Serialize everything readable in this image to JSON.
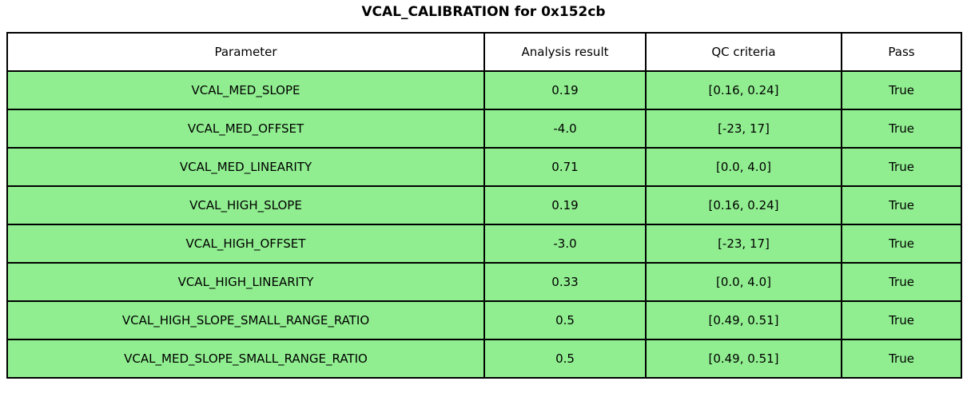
{
  "title": "VCAL_CALIBRATION for 0x152cb",
  "chart_data": {
    "type": "table",
    "title": "VCAL_CALIBRATION for 0x152cb",
    "columns": [
      "Parameter",
      "Analysis result",
      "QC criteria",
      "Pass"
    ],
    "rows": [
      {
        "parameter": "VCAL_MED_SLOPE",
        "analysis_result": "0.19",
        "qc_criteria": "[0.16, 0.24]",
        "pass": "True"
      },
      {
        "parameter": "VCAL_MED_OFFSET",
        "analysis_result": "-4.0",
        "qc_criteria": "[-23, 17]",
        "pass": "True"
      },
      {
        "parameter": "VCAL_MED_LINEARITY",
        "analysis_result": "0.71",
        "qc_criteria": "[0.0, 4.0]",
        "pass": "True"
      },
      {
        "parameter": "VCAL_HIGH_SLOPE",
        "analysis_result": "0.19",
        "qc_criteria": "[0.16, 0.24]",
        "pass": "True"
      },
      {
        "parameter": "VCAL_HIGH_OFFSET",
        "analysis_result": "-3.0",
        "qc_criteria": "[-23, 17]",
        "pass": "True"
      },
      {
        "parameter": "VCAL_HIGH_LINEARITY",
        "analysis_result": "0.33",
        "qc_criteria": "[0.0, 4.0]",
        "pass": "True"
      },
      {
        "parameter": "VCAL_HIGH_SLOPE_SMALL_RANGE_RATIO",
        "analysis_result": "0.5",
        "qc_criteria": "[0.49, 0.51]",
        "pass": "True"
      },
      {
        "parameter": "VCAL_MED_SLOPE_SMALL_RANGE_RATIO",
        "analysis_result": "0.5",
        "qc_criteria": "[0.49, 0.51]",
        "pass": "True"
      }
    ]
  },
  "colors": {
    "pass_row_bg": "#90EE90",
    "header_bg": "#ffffff",
    "border": "#000000"
  }
}
